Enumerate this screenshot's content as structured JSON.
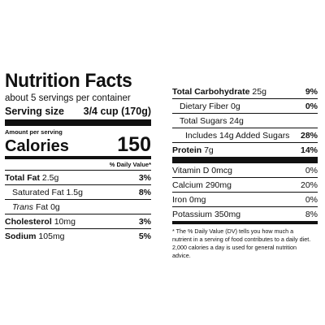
{
  "label": {
    "title": "Nutrition Facts",
    "servings_per_container": "about 5 servings per container",
    "serving_size_label": "Serving size",
    "serving_size_value": "3/4 cup (170g)",
    "amount_per_serving": "Amount per serving",
    "calories_label": "Calories",
    "calories_value": "150",
    "daily_value_header": "% Daily Value*"
  },
  "left_rows": [
    {
      "name": "Total Fat",
      "amount": "2.5g",
      "dv": "3%"
    },
    {
      "name": "Saturated Fat",
      "amount": "1.5g",
      "dv": "8%"
    },
    {
      "name": "Trans",
      "name_suffix": "Fat",
      "amount": "0g",
      "dv": ""
    },
    {
      "name": "Cholesterol",
      "amount": "10mg",
      "dv": "3%"
    },
    {
      "name": "Sodium",
      "amount": "105mg",
      "dv": "5%"
    }
  ],
  "right_rows": [
    {
      "name": "Total Carbohydrate",
      "amount": "25g",
      "dv": "9%"
    },
    {
      "name": "Dietary Fiber",
      "amount": "0g",
      "dv": "0%"
    },
    {
      "name": "Total Sugars",
      "amount": "24g",
      "dv": ""
    },
    {
      "name": "Includes",
      "amount": "14g Added Sugars",
      "dv": "28%"
    },
    {
      "name": "Protein",
      "amount": "7g",
      "dv": "14%"
    }
  ],
  "vitamins": [
    {
      "name": "Vitamin D",
      "amount": "0mcg",
      "dv": "0%"
    },
    {
      "name": "Calcium",
      "amount": "290mg",
      "dv": "20%"
    },
    {
      "name": "Iron",
      "amount": "0mg",
      "dv": "0%"
    },
    {
      "name": "Potassium",
      "amount": "350mg",
      "dv": "8%"
    }
  ],
  "footnote": "* The % Daily Value (DV) tells you how much a nutrient in a serving of food contributes to a daily diet. 2,000 calories a day is used for general nutrition advice."
}
